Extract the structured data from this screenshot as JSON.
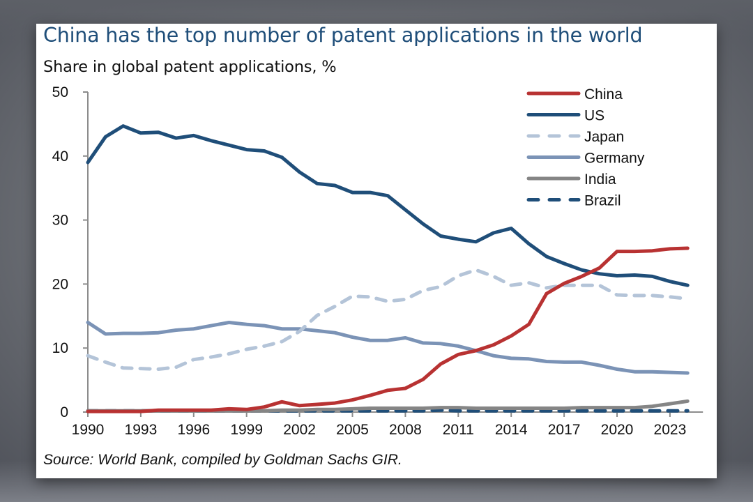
{
  "chart_data": {
    "type": "line",
    "title": "China has the top number of patent applications in the world",
    "subtitle": "Share in global patent applications, %",
    "source": "Source: World Bank, compiled by Goldman Sachs GIR.",
    "xlabel": "",
    "ylabel": "Share in global patent applications, %",
    "xlim": [
      1990,
      2024
    ],
    "ylim": [
      0,
      50
    ],
    "x_ticks": [
      1990,
      1993,
      1996,
      1999,
      2002,
      2005,
      2008,
      2011,
      2014,
      2017,
      2020,
      2023
    ],
    "y_ticks": [
      0,
      10,
      20,
      30,
      40,
      50
    ],
    "grid": false,
    "legend_position": "top-right",
    "x": [
      1990,
      1991,
      1992,
      1993,
      1994,
      1995,
      1996,
      1997,
      1998,
      1999,
      2000,
      2001,
      2002,
      2003,
      2004,
      2005,
      2006,
      2007,
      2008,
      2009,
      2010,
      2011,
      2012,
      2013,
      2014,
      2015,
      2016,
      2017,
      2018,
      2019,
      2020,
      2021,
      2022,
      2023,
      2024
    ],
    "series": [
      {
        "name": "China",
        "color": "#b83232",
        "dash": "solid",
        "values": [
          0.1,
          0.1,
          0.1,
          0.1,
          0.3,
          0.3,
          0.3,
          0.3,
          0.5,
          0.4,
          0.8,
          1.6,
          1.0,
          1.2,
          1.4,
          1.9,
          2.6,
          3.4,
          3.7,
          5.1,
          7.5,
          9.0,
          9.6,
          10.5,
          11.9,
          13.7,
          18.5,
          20.1,
          21.2,
          22.5,
          25.1,
          25.1,
          25.2,
          25.5,
          25.6
        ]
      },
      {
        "name": "US",
        "color": "#1f4e79",
        "dash": "solid",
        "values": [
          39.0,
          43.0,
          44.7,
          43.6,
          43.7,
          42.8,
          43.2,
          42.4,
          41.7,
          41.0,
          40.8,
          39.8,
          37.5,
          35.7,
          35.4,
          34.3,
          34.3,
          33.8,
          31.6,
          29.4,
          27.5,
          27.0,
          26.6,
          28.0,
          28.7,
          26.3,
          24.3,
          23.2,
          22.2,
          21.6,
          21.3,
          21.4,
          21.2,
          20.4,
          19.8
        ]
      },
      {
        "name": "Japan",
        "color": "#b4c4d8",
        "dash": "dashed",
        "values": [
          8.8,
          7.8,
          6.9,
          6.8,
          6.7,
          7.0,
          8.2,
          8.6,
          9.1,
          9.8,
          10.3,
          11.0,
          12.6,
          15.1,
          16.5,
          18.1,
          18.0,
          17.3,
          17.6,
          19.0,
          19.6,
          21.3,
          22.2,
          21.2,
          19.8,
          20.2,
          19.4,
          19.8,
          19.8,
          19.8,
          18.3,
          18.2,
          18.2,
          18.0,
          17.7
        ]
      },
      {
        "name": "Germany",
        "color": "#7b93b6",
        "dash": "solid",
        "values": [
          14.0,
          12.2,
          12.3,
          12.3,
          12.4,
          12.8,
          13.0,
          13.5,
          14.0,
          13.7,
          13.5,
          13.0,
          13.0,
          12.7,
          12.4,
          11.7,
          11.2,
          11.2,
          11.6,
          10.8,
          10.7,
          10.3,
          9.6,
          8.8,
          8.4,
          8.3,
          7.9,
          7.8,
          7.8,
          7.3,
          6.7,
          6.3,
          6.3,
          6.2,
          6.1
        ]
      },
      {
        "name": "India",
        "color": "#858585",
        "dash": "solid",
        "values": [
          0.2,
          0.2,
          0.2,
          0.2,
          0.2,
          0.2,
          0.2,
          0.2,
          0.2,
          0.2,
          0.2,
          0.3,
          0.3,
          0.4,
          0.4,
          0.5,
          0.6,
          0.6,
          0.6,
          0.6,
          0.7,
          0.7,
          0.6,
          0.6,
          0.6,
          0.6,
          0.6,
          0.6,
          0.7,
          0.7,
          0.7,
          0.7,
          0.9,
          1.3,
          1.7
        ]
      },
      {
        "name": "Brazil",
        "color": "#1f4e79",
        "dash": "dashed",
        "values": [
          0.2,
          0.2,
          0.2,
          0.2,
          0.2,
          0.2,
          0.2,
          0.2,
          0.2,
          0.2,
          0.2,
          0.2,
          0.2,
          0.2,
          0.2,
          0.2,
          0.2,
          0.2,
          0.2,
          0.2,
          0.3,
          0.2,
          0.2,
          0.2,
          0.2,
          0.2,
          0.2,
          0.2,
          0.2,
          0.2,
          0.2,
          0.2,
          0.2,
          0.2,
          0.2
        ]
      }
    ]
  }
}
